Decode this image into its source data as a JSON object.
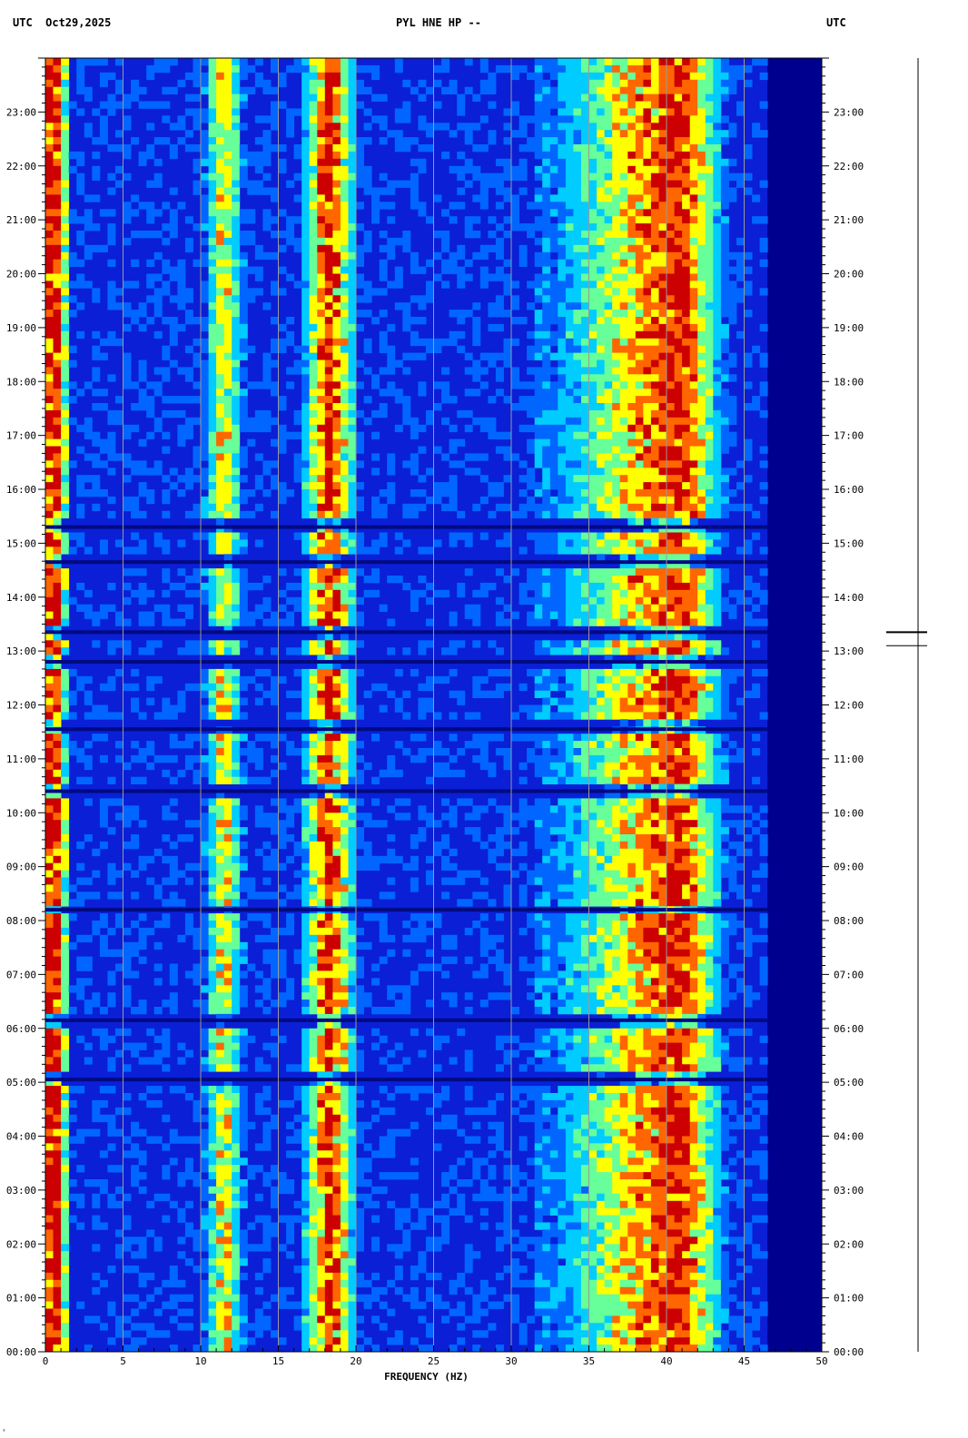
{
  "header": {
    "left": "UTC  Oct29,2025",
    "center": "PYL HNE HP --",
    "right": "UTC"
  },
  "chart_data": {
    "type": "heatmap",
    "title": "PYL HNE HP --",
    "date": "Oct29,2025",
    "xlabel": "FREQUENCY (HZ)",
    "ylabel": "",
    "xlim": [
      0,
      50
    ],
    "ylim_hours": [
      0,
      24
    ],
    "x_ticks_major": [
      0,
      5,
      10,
      15,
      20,
      25,
      30,
      35,
      40,
      45,
      50
    ],
    "x_tick_labels": [
      "0",
      "5",
      "10",
      "15",
      "20",
      "25",
      "30",
      "35",
      "40",
      "45",
      "50"
    ],
    "y_tick_labels": [
      "00:00",
      "01:00",
      "02:00",
      "03:00",
      "04:00",
      "05:00",
      "06:00",
      "07:00",
      "08:00",
      "09:00",
      "10:00",
      "11:00",
      "12:00",
      "13:00",
      "14:00",
      "15:00",
      "16:00",
      "17:00",
      "18:00",
      "19:00",
      "20:00",
      "21:00",
      "22:00",
      "23:00"
    ],
    "grid": true,
    "colormap": [
      "#00008f",
      "#0000ff",
      "#0066ff",
      "#00ccff",
      "#66ff99",
      "#ffff00",
      "#ff6600",
      "#cc0000"
    ],
    "background_color": "#0a1fd6",
    "bands": [
      {
        "f_center": 0.5,
        "width": 1.2,
        "intensity": 0.95
      },
      {
        "f_center": 11.5,
        "width": 1.4,
        "intensity": 0.55
      },
      {
        "f_center": 18.3,
        "width": 2.0,
        "intensity": 0.8
      },
      {
        "f_center": 32.0,
        "width": 0.3,
        "intensity": 0.45
      },
      {
        "f_center": 38.0,
        "width": 6.0,
        "intensity": 0.55
      },
      {
        "f_center": 41.0,
        "width": 3.0,
        "intensity": 0.5
      }
    ],
    "dark_rows_hours": [
      5.05,
      6.15,
      8.2,
      10.4,
      11.55,
      12.8,
      13.35,
      14.65,
      15.3
    ],
    "cutoff_hz": 46.5,
    "side_markers_hours": [
      13.35,
      13.1
    ]
  },
  "footer": {
    "corner_mark": "ˢ"
  }
}
